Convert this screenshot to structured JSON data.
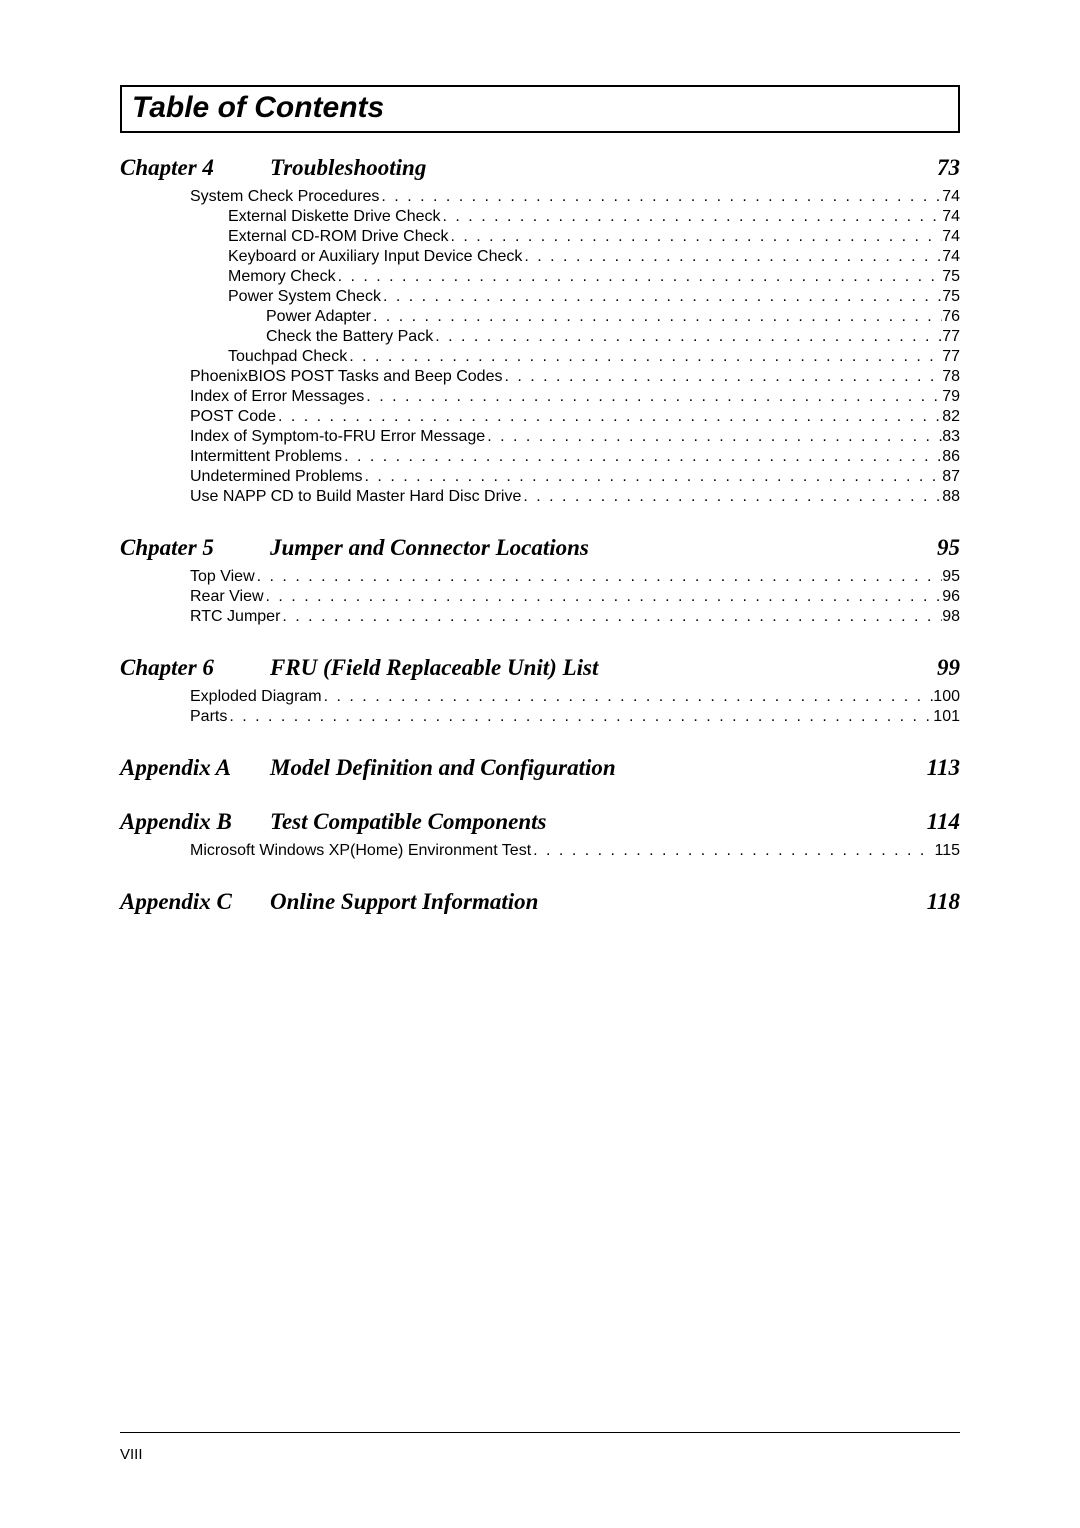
{
  "toc_title": "Table of Contents",
  "page_number": "VIII",
  "dots": ". . . . . . . . . . . . . . . . . . . . . . . . . . . . . . . . . . . . . . . . . . . . . . . . . . . . . . . . . . . . . . . . . . . . . . . . . . . . . . . . . . . . . . . . . . . . . . . . . . . . . . . . . . . . . . . . . . . . . . . .",
  "chapters": [
    {
      "label": "Chapter 4",
      "name": "Troubleshooting",
      "page": "73",
      "entries": [
        {
          "indent": 0,
          "label": "System Check Procedures",
          "page": "74"
        },
        {
          "indent": 1,
          "label": "External Diskette Drive Check",
          "page": "74"
        },
        {
          "indent": 1,
          "label": "External CD-ROM Drive Check",
          "page": "74"
        },
        {
          "indent": 1,
          "label": "Keyboard or Auxiliary Input Device Check",
          "page": "74"
        },
        {
          "indent": 1,
          "label": "Memory Check",
          "page": "75"
        },
        {
          "indent": 1,
          "label": "Power System Check",
          "page": "75"
        },
        {
          "indent": 2,
          "label": "Power Adapter",
          "page": "76"
        },
        {
          "indent": 2,
          "label": "Check the Battery Pack",
          "page": " 77"
        },
        {
          "indent": 1,
          "label": "Touchpad Check",
          "page": " 77"
        },
        {
          "indent": 0,
          "label": "PhoenixBIOS POST Tasks and Beep Codes",
          "page": "78"
        },
        {
          "indent": 0,
          "label": "Index of Error Messages",
          "page": "79"
        },
        {
          "indent": 0,
          "label": "POST Code",
          "page": "82"
        },
        {
          "indent": 0,
          "label": "Index of Symptom-to-FRU Error Message",
          "page": "83"
        },
        {
          "indent": 0,
          "label": "Intermittent Problems",
          "page": "86"
        },
        {
          "indent": 0,
          "label": "Undetermined Problems",
          "page": "87"
        },
        {
          "indent": 0,
          "label": "Use NAPP CD to Build Master Hard Disc Drive",
          "page": "88"
        }
      ]
    },
    {
      "label": "Chpater 5",
      "name": "Jumper and Connector Locations",
      "page": "95",
      "entries": [
        {
          "indent": 0,
          "label": "Top View",
          "page": "95"
        },
        {
          "indent": 0,
          "label": "Rear View",
          "page": "96"
        },
        {
          "indent": 0,
          "label": "RTC Jumper",
          "page": "98"
        }
      ]
    },
    {
      "label": "Chapter 6",
      "name": "FRU (Field Replaceable Unit) List",
      "page": "99",
      "entries": [
        {
          "indent": 0,
          "label": "Exploded Diagram",
          "page": "100"
        },
        {
          "indent": 0,
          "label": "Parts",
          "page": "101"
        }
      ]
    },
    {
      "label": "Appendix A",
      "name": "Model Definition and Configuration",
      "page": "113",
      "entries": []
    },
    {
      "label": "Appendix B",
      "name": "Test Compatible Components",
      "page": "114",
      "entries": [
        {
          "indent": 0,
          "label": "Microsoft Windows XP(Home)  Environment Test",
          "page": "115"
        }
      ]
    },
    {
      "label": "Appendix C",
      "name": "Online Support Information",
      "page": "118",
      "entries": []
    }
  ]
}
